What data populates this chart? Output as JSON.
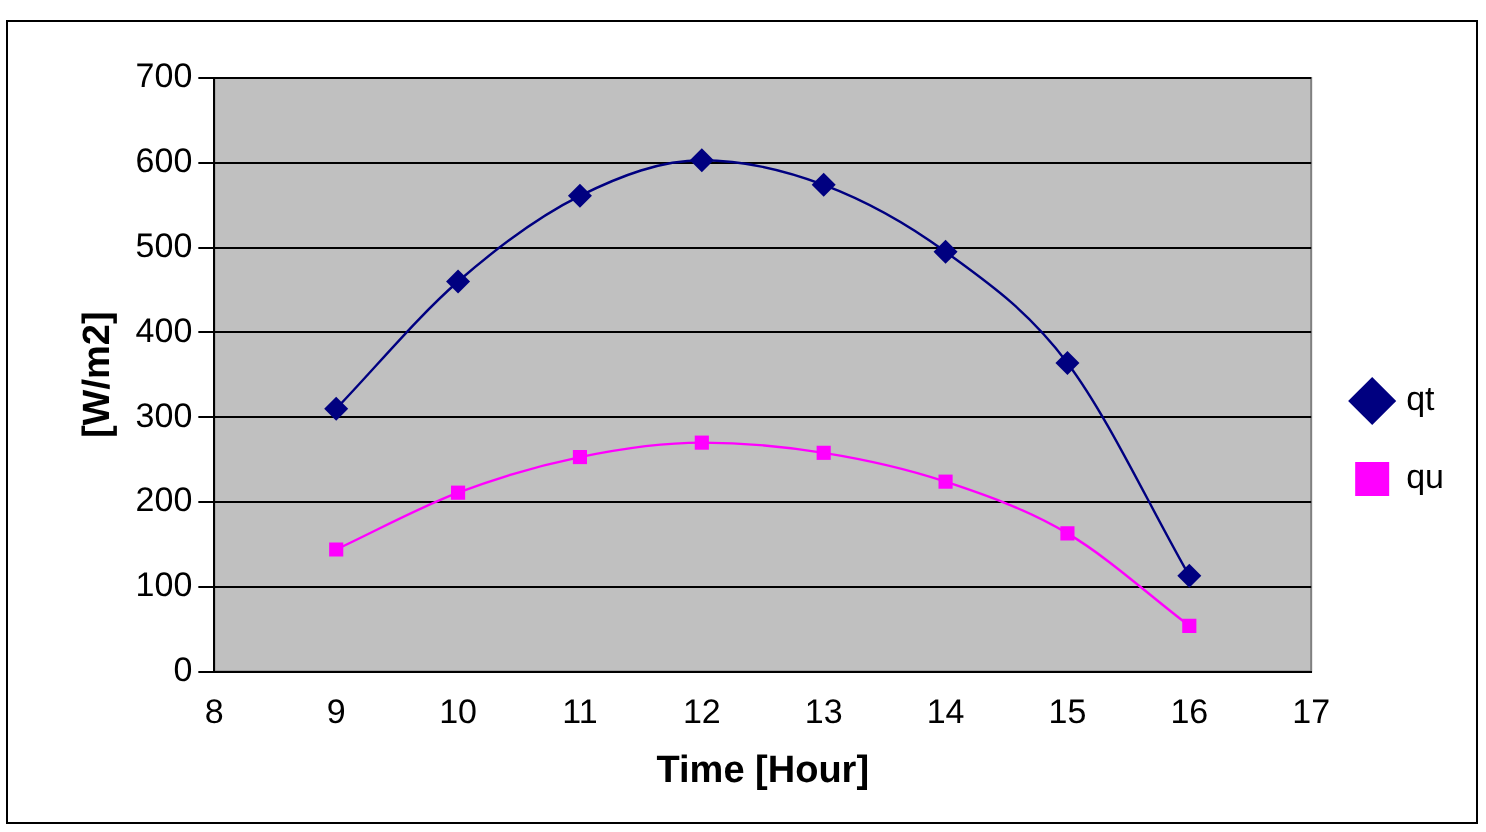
{
  "chart_data": {
    "type": "line",
    "xlabel": "Time [Hour]",
    "ylabel": "[W/m2]",
    "x": [
      9,
      10,
      11,
      12,
      13,
      14,
      15,
      16
    ],
    "series": [
      {
        "name": "qt",
        "color": "#000080",
        "marker": "diamond",
        "values": [
          310,
          460,
          561,
          603,
          574,
          495,
          364,
          113
        ]
      },
      {
        "name": "qu",
        "color": "#ff00ff",
        "marker": "square",
        "values": [
          144,
          211,
          253,
          270,
          258,
          224,
          163,
          54
        ]
      }
    ],
    "xlim": [
      8,
      17
    ],
    "xticks": [
      8,
      9,
      10,
      11,
      12,
      13,
      14,
      15,
      16,
      17
    ],
    "ylim": [
      0,
      700
    ],
    "yticks": [
      0,
      100,
      200,
      300,
      400,
      500,
      600,
      700
    ],
    "grid": "y",
    "legend": "right"
  }
}
